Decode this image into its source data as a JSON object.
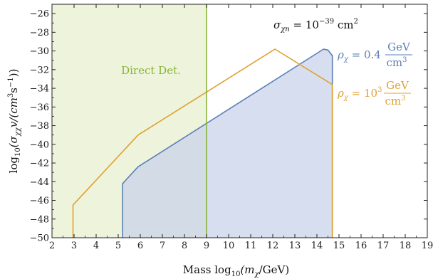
{
  "chart_data": {
    "type": "area",
    "xlabel_parts": [
      "Mass  log",
      "10",
      "(m",
      "χ",
      "/GeV)"
    ],
    "ylabel_parts": [
      "log",
      "10",
      "(σ",
      "χχ",
      "v/(cm",
      "3",
      "s",
      "−1",
      "))"
    ],
    "xlim": [
      2,
      19
    ],
    "ylim": [
      -50,
      -25
    ],
    "xticks": [
      2,
      3,
      4,
      5,
      6,
      7,
      8,
      9,
      10,
      11,
      12,
      13,
      14,
      15,
      16,
      17,
      18,
      19
    ],
    "yticks": [
      -50,
      -48,
      -46,
      -44,
      -42,
      -40,
      -38,
      -36,
      -34,
      -32,
      -30,
      -28,
      -26
    ],
    "grid": false,
    "colors": {
      "direct_fill": "#eef3dc",
      "direct_line": "#8ab43a",
      "blue_line": "#5a7fb6",
      "blue_fill": "#c9d3ea",
      "orange_line": "#e0a030"
    },
    "regions": [
      {
        "label": "Direct Det.",
        "x_range": [
          2,
          9
        ],
        "boundary_x": 9
      }
    ],
    "series": [
      {
        "legend_prefix": "ρ",
        "legend_sub": "χ",
        "legend_value": " = 0.4 ",
        "legend_frac_num": "GeV",
        "legend_frac_den": "cm",
        "legend_frac_den_sup": "3",
        "color": "#5a7fb6",
        "filled": true,
        "points": [
          [
            5.2,
            -50
          ],
          [
            5.2,
            -44.2
          ],
          [
            5.9,
            -42.4
          ],
          [
            14.3,
            -29.8
          ],
          [
            14.5,
            -29.9
          ],
          [
            14.7,
            -30.5
          ],
          [
            14.7,
            -50
          ]
        ]
      },
      {
        "legend_prefix": "ρ",
        "legend_sub": "χ",
        "legend_value": " = 10",
        "legend_value_sup": "3",
        "legend_frac_num": "GeV",
        "legend_frac_den": "cm",
        "legend_frac_den_sup": "3",
        "color": "#e0a030",
        "filled": false,
        "points": [
          [
            2.95,
            -50
          ],
          [
            2.95,
            -46.5
          ],
          [
            5.9,
            -39.0
          ],
          [
            12.1,
            -29.8
          ],
          [
            14.7,
            -33.6
          ],
          [
            14.7,
            -50
          ]
        ]
      }
    ],
    "annotation": {
      "prefix": "σ",
      "sub": "χn",
      "middle": " = 10",
      "sup": "−39",
      "suffix": " cm",
      "suffix_sup": "2"
    }
  }
}
